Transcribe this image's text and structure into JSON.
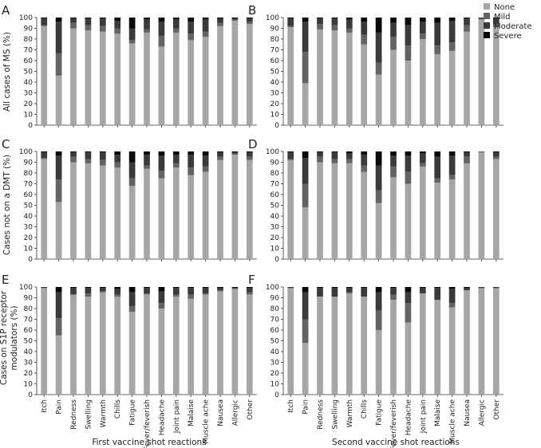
{
  "legend": {
    "items": [
      {
        "label": "None",
        "color": "#a6a6a6"
      },
      {
        "label": "Mild",
        "color": "#636363"
      },
      {
        "label": "Moderate",
        "color": "#3a3a3a"
      },
      {
        "label": "Severe",
        "color": "#0a0a0a"
      }
    ]
  },
  "row_labels": [
    "All cases of MS (%)",
    "Cases not on a DMT (%)",
    "Cases on S1P receptor modulators (%)"
  ],
  "column_labels": [
    "First vaccine shot reactions",
    "Second vaccine shot reactions"
  ],
  "chart_data": [
    {
      "panel": "A",
      "type": "bar",
      "stacked": true,
      "ylim": [
        0,
        100
      ],
      "yticks": [
        0,
        10,
        20,
        30,
        40,
        50,
        60,
        70,
        80,
        90,
        100
      ],
      "categories": [
        "Itch",
        "Pain",
        "Redness",
        "Swelling",
        "Warmth",
        "Chills",
        "Fatigue",
        "Fever/feverish",
        "Headache",
        "Joint pain",
        "Malaise",
        "Muscle ache",
        "Nausea",
        "Allergic",
        "Other"
      ],
      "series": [
        {
          "name": "None",
          "values": [
            92,
            46,
            90,
            88,
            87,
            85,
            76,
            86,
            73,
            86,
            79,
            82,
            92,
            97,
            94
          ]
        },
        {
          "name": "Mild",
          "values": [
            1,
            21,
            5,
            5,
            5,
            5,
            3,
            3,
            10,
            4,
            6,
            5,
            3,
            1,
            2
          ]
        },
        {
          "name": "Moderate",
          "values": [
            6,
            29,
            4,
            6,
            7,
            7,
            11,
            9,
            13,
            8,
            11,
            11,
            4,
            1,
            3
          ]
        },
        {
          "name": "Severe",
          "values": [
            1,
            4,
            1,
            1,
            1,
            3,
            10,
            2,
            4,
            2,
            4,
            2,
            1,
            1,
            1
          ]
        }
      ]
    },
    {
      "panel": "B",
      "type": "bar",
      "stacked": true,
      "ylim": [
        0,
        100
      ],
      "yticks": [
        0,
        10,
        20,
        30,
        40,
        50,
        60,
        70,
        80,
        90,
        100
      ],
      "categories": [
        "Itch",
        "Pain",
        "Redness",
        "Swelling",
        "Warmth",
        "Chills",
        "Fatigue",
        "Fever/feverish",
        "Headache",
        "Joint pain",
        "Malaise",
        "Muscle ache",
        "Nausea",
        "Allergic",
        "Other"
      ],
      "series": [
        {
          "name": "None",
          "values": [
            91,
            39,
            89,
            88,
            86,
            75,
            47,
            70,
            60,
            80,
            66,
            69,
            87,
            98,
            91
          ]
        },
        {
          "name": "Mild",
          "values": [
            1,
            29,
            5,
            5,
            4,
            9,
            11,
            12,
            14,
            5,
            8,
            8,
            6,
            1,
            3
          ]
        },
        {
          "name": "Moderate",
          "values": [
            7,
            28,
            5,
            6,
            8,
            12,
            28,
            13,
            19,
            11,
            21,
            20,
            6,
            1,
            5
          ]
        },
        {
          "name": "Severe",
          "values": [
            1,
            4,
            1,
            1,
            2,
            4,
            14,
            5,
            7,
            4,
            5,
            3,
            1,
            0,
            1
          ]
        }
      ]
    },
    {
      "panel": "C",
      "type": "bar",
      "stacked": true,
      "ylim": [
        0,
        100
      ],
      "yticks": [
        0,
        10,
        20,
        30,
        40,
        50,
        60,
        70,
        80,
        90,
        100
      ],
      "categories": [
        "Itch",
        "Pain",
        "Redness",
        "Swelling",
        "Warmth",
        "Chills",
        "Fatigue",
        "Fever/feverish",
        "Headache",
        "Joint pain",
        "Malaise",
        "Muscle ache",
        "Nausea",
        "Allergic",
        "Other"
      ],
      "series": [
        {
          "name": "None",
          "values": [
            93,
            53,
            90,
            89,
            87,
            85,
            68,
            84,
            75,
            85,
            78,
            81,
            92,
            97,
            92
          ]
        },
        {
          "name": "Mild",
          "values": [
            1,
            21,
            5,
            4,
            5,
            5,
            7,
            3,
            7,
            4,
            7,
            5,
            3,
            1,
            3
          ]
        },
        {
          "name": "Moderate",
          "values": [
            5,
            22,
            4,
            6,
            7,
            7,
            15,
            10,
            14,
            8,
            12,
            10,
            4,
            1,
            4
          ]
        },
        {
          "name": "Severe",
          "values": [
            1,
            4,
            1,
            1,
            1,
            3,
            10,
            3,
            4,
            3,
            3,
            4,
            1,
            1,
            1
          ]
        }
      ]
    },
    {
      "panel": "D",
      "type": "bar",
      "stacked": true,
      "ylim": [
        0,
        100
      ],
      "yticks": [
        0,
        10,
        20,
        30,
        40,
        50,
        60,
        70,
        80,
        90,
        100
      ],
      "categories": [
        "Itch",
        "Pain",
        "Redness",
        "Swelling",
        "Warmth",
        "Chills",
        "Fatigue",
        "Fever/feverish",
        "Headache",
        "Joint pain",
        "Malaise",
        "Muscle ache",
        "Nausea",
        "Allergic",
        "Other"
      ],
      "series": [
        {
          "name": "None",
          "values": [
            92,
            48,
            90,
            89,
            89,
            81,
            52,
            76,
            70,
            86,
            71,
            74,
            89,
            99,
            93
          ]
        },
        {
          "name": "Mild",
          "values": [
            1,
            22,
            5,
            4,
            4,
            6,
            12,
            10,
            11,
            3,
            4,
            4,
            6,
            1,
            2
          ]
        },
        {
          "name": "Moderate",
          "values": [
            6,
            24,
            4,
            6,
            5,
            10,
            23,
            10,
            15,
            9,
            20,
            18,
            4,
            0,
            4
          ]
        },
        {
          "name": "Severe",
          "values": [
            1,
            6,
            1,
            1,
            2,
            3,
            13,
            4,
            4,
            2,
            5,
            4,
            1,
            0,
            1
          ]
        }
      ]
    },
    {
      "panel": "E",
      "type": "bar",
      "stacked": true,
      "ylim": [
        0,
        100
      ],
      "yticks": [
        0,
        10,
        20,
        30,
        40,
        50,
        60,
        70,
        80,
        90,
        100
      ],
      "categories": [
        "Itch",
        "Pain",
        "Redness",
        "Swelling",
        "Warmth",
        "Chills",
        "Fatigue",
        "Fever/feverish",
        "Headache",
        "Joint pain",
        "Malaise",
        "Muscle ache",
        "Nausea",
        "Allergic",
        "Other"
      ],
      "series": [
        {
          "name": "None",
          "values": [
            99,
            55,
            93,
            91,
            95,
            91,
            77,
            93,
            80,
            91,
            89,
            93,
            96,
            98,
            93
          ]
        },
        {
          "name": "Mild",
          "values": [
            0,
            16,
            0,
            3,
            1,
            2,
            5,
            1,
            5,
            2,
            4,
            1,
            1,
            1,
            2
          ]
        },
        {
          "name": "Moderate",
          "values": [
            1,
            24,
            6,
            5,
            3,
            5,
            13,
            5,
            11,
            6,
            6,
            5,
            2,
            0,
            4
          ]
        },
        {
          "name": "Severe",
          "values": [
            0,
            5,
            1,
            1,
            1,
            2,
            5,
            1,
            4,
            1,
            1,
            1,
            1,
            1,
            1
          ]
        }
      ]
    },
    {
      "panel": "F",
      "type": "bar",
      "stacked": true,
      "ylim": [
        0,
        100
      ],
      "yticks": [
        0,
        10,
        20,
        30,
        40,
        50,
        60,
        70,
        80,
        90,
        100
      ],
      "categories": [
        "Itch",
        "Pain",
        "Redness",
        "Swelling",
        "Warmth",
        "Chills",
        "Fatigue",
        "Fever/feverish",
        "Headache",
        "Joint pain",
        "Malaise",
        "Muscle ache",
        "Nausea",
        "Allergic",
        "Other"
      ],
      "series": [
        {
          "name": "None",
          "values": [
            99,
            48,
            91,
            91,
            94,
            91,
            60,
            88,
            67,
            94,
            88,
            81,
            97,
            99,
            99
          ]
        },
        {
          "name": "Mild",
          "values": [
            0,
            22,
            0,
            0,
            1,
            0,
            18,
            5,
            18,
            0,
            0,
            4,
            0,
            0,
            0
          ]
        },
        {
          "name": "Moderate",
          "values": [
            1,
            25,
            8,
            8,
            4,
            8,
            17,
            6,
            10,
            5,
            11,
            13,
            2,
            1,
            1
          ]
        },
        {
          "name": "Severe",
          "values": [
            0,
            5,
            1,
            1,
            1,
            1,
            5,
            1,
            5,
            1,
            1,
            2,
            1,
            0,
            0
          ]
        }
      ]
    }
  ]
}
